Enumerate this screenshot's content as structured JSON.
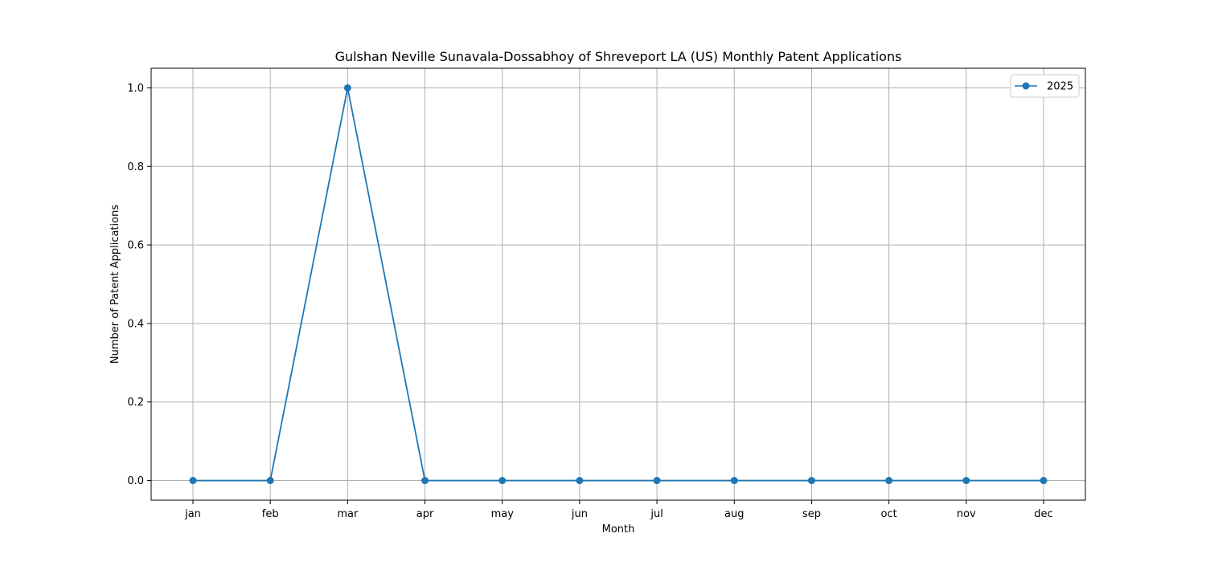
{
  "chart_data": {
    "type": "line",
    "title": "Gulshan Neville Sunavala-Dossabhoy of Shreveport LA (US) Monthly Patent Applications",
    "xlabel": "Month",
    "ylabel": "Number of Patent Applications",
    "categories": [
      "jan",
      "feb",
      "mar",
      "apr",
      "may",
      "jun",
      "jul",
      "aug",
      "sep",
      "oct",
      "nov",
      "dec"
    ],
    "series": [
      {
        "name": "2025",
        "values": [
          0,
          0,
          1,
          0,
          0,
          0,
          0,
          0,
          0,
          0,
          0,
          0
        ]
      }
    ],
    "ylim": [
      -0.05,
      1.05
    ],
    "yticks": [
      "0.0",
      "0.2",
      "0.4",
      "0.6",
      "0.8",
      "1.0"
    ],
    "grid": true,
    "legend_position": "top-right",
    "colors": {
      "series": "#1f77b4",
      "grid": "#b0b0b0",
      "axes": "#000000"
    }
  }
}
